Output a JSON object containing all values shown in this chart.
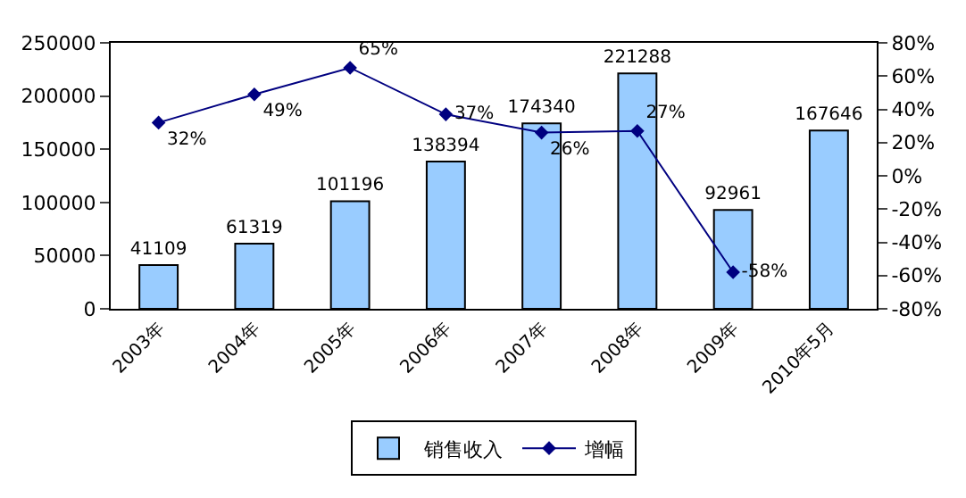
{
  "chart_data": {
    "type": "bar",
    "categories": [
      "2003年",
      "2004年",
      "2005年",
      "2006年",
      "2007年",
      "2008年",
      "2009年",
      "2010年5月"
    ],
    "series": [
      {
        "name": "销售收入",
        "color": "#99ccff",
        "values": [
          41109,
          61319,
          101196,
          138394,
          174340,
          221288,
          92961,
          167646
        ],
        "value_labels": [
          "41109",
          "61319",
          "101196",
          "138394",
          "174340",
          "221288",
          "92961",
          "167646"
        ]
      },
      {
        "name": "增幅",
        "type": "line",
        "axis": "y2",
        "color": "#000080",
        "marker": "diamond",
        "values": [
          32,
          49,
          65,
          37,
          26,
          27,
          -58,
          null
        ],
        "value_labels": [
          "32%",
          "49%",
          "65%",
          "37%",
          "26%",
          "27%",
          "-58%",
          null
        ]
      }
    ],
    "ylim": [
      0,
      250000
    ],
    "yticks": [
      0,
      50000,
      100000,
      150000,
      200000,
      250000
    ],
    "y2lim": [
      -80,
      80
    ],
    "y2ticks": [
      {
        "value": -80,
        "label": "-80%"
      },
      {
        "value": -60,
        "label": "-60%"
      },
      {
        "value": -40,
        "label": "-40%"
      },
      {
        "value": -20,
        "label": "-20%"
      },
      {
        "value": 0,
        "label": "0%"
      },
      {
        "value": 20,
        "label": "20%"
      },
      {
        "value": 40,
        "label": "40%"
      },
      {
        "value": 60,
        "label": "60%"
      },
      {
        "value": 80,
        "label": "80%"
      }
    ],
    "grid": false,
    "legend": "bottom"
  }
}
